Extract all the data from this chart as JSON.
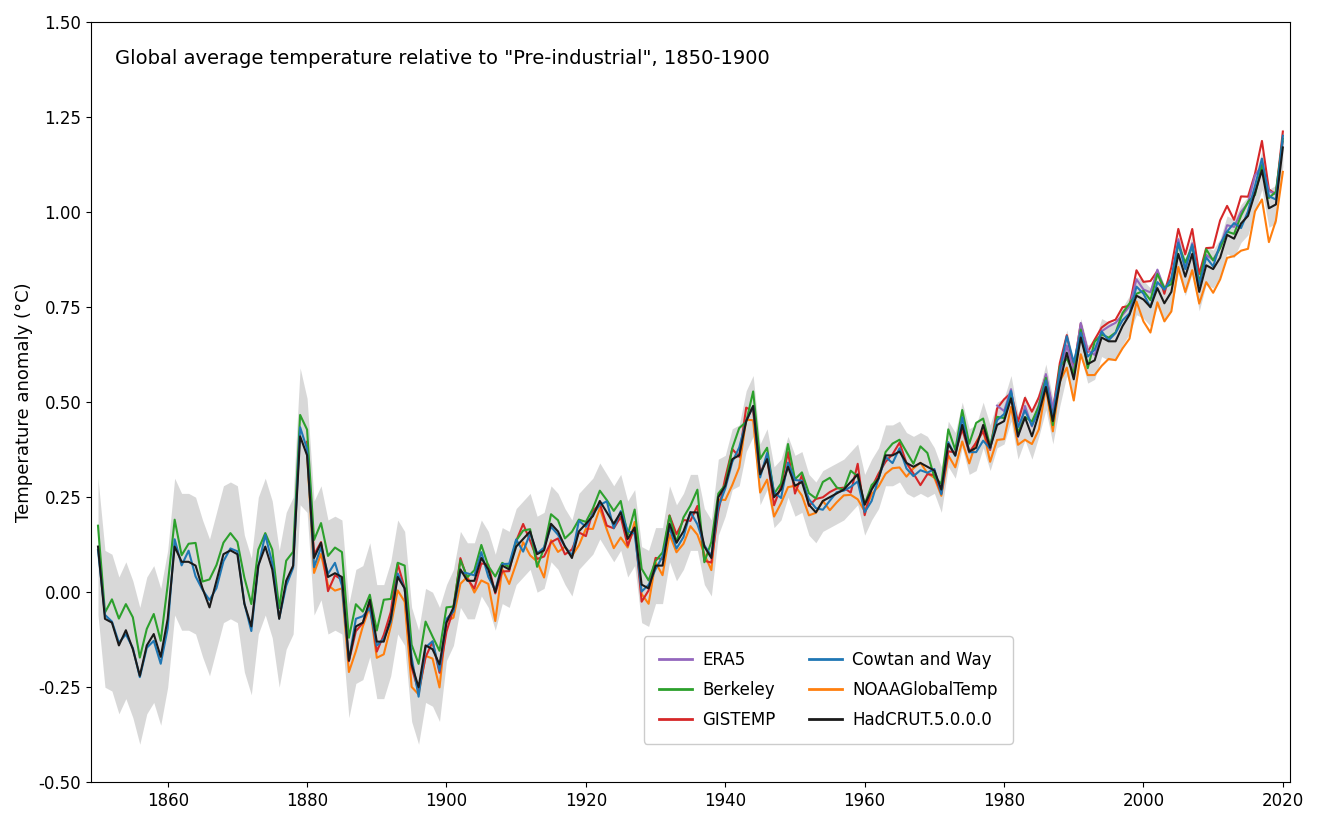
{
  "title": "Global average temperature relative to \"Pre-industrial\", 1850-1900",
  "ylabel": "Temperature anomaly (°C)",
  "ylim": [
    -0.5,
    1.5
  ],
  "xlim": [
    1849,
    2021
  ],
  "xticks": [
    1860,
    1880,
    1900,
    1920,
    1940,
    1960,
    1980,
    2000,
    2020
  ],
  "yticks": [
    -0.5,
    -0.25,
    0.0,
    0.25,
    0.5,
    0.75,
    1.0,
    1.25,
    1.5
  ],
  "series": {
    "ERA5": {
      "color": "#9467bd",
      "lw": 1.5,
      "zorder": 5
    },
    "GISTEMP": {
      "color": "#d62728",
      "lw": 1.5,
      "zorder": 4
    },
    "NOAAGlobalTemp": {
      "color": "#ff7f0e",
      "lw": 1.5,
      "zorder": 3
    },
    "Berkeley": {
      "color": "#2ca02c",
      "lw": 1.5,
      "zorder": 6
    },
    "Cowtan and Way": {
      "color": "#1f77b4",
      "lw": 1.5,
      "zorder": 7
    },
    "HadCRUT.5.0.0.0": {
      "color": "#1a1a1a",
      "lw": 1.5,
      "zorder": 8
    }
  },
  "legend_ncol": 2,
  "background_color": "#ffffff",
  "band_color": "#aaaaaa",
  "band_alpha": 0.45
}
